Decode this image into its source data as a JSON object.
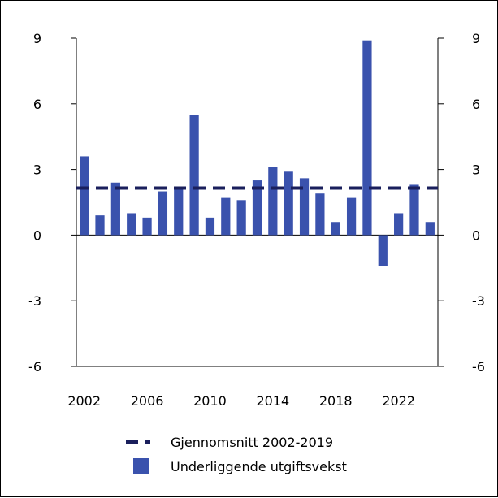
{
  "chart_data": {
    "type": "bar",
    "title": "",
    "xlabel": "",
    "ylabel": "",
    "x": [
      2002,
      2003,
      2004,
      2005,
      2006,
      2007,
      2008,
      2009,
      2010,
      2011,
      2012,
      2013,
      2014,
      2015,
      2016,
      2017,
      2018,
      2019,
      2020,
      2021,
      2022,
      2023,
      2024
    ],
    "series": [
      {
        "name": "Underliggende utgiftsvekst",
        "kind": "bar",
        "color": "#3a52ad",
        "values": [
          3.6,
          0.9,
          2.4,
          1.0,
          0.8,
          2.0,
          2.2,
          5.5,
          0.8,
          1.7,
          1.6,
          2.5,
          3.1,
          2.9,
          2.6,
          1.9,
          0.6,
          1.7,
          8.9,
          -1.4,
          1.0,
          2.3,
          0.6
        ]
      },
      {
        "name": "Gjennomsnitt 2002-2019",
        "kind": "line",
        "style": "dashed",
        "color": "#1a1f5c",
        "value": 2.15
      }
    ],
    "ylim": [
      -6,
      9
    ],
    "yticks": [
      "-6",
      "-3",
      "0",
      "3",
      "6",
      "9"
    ],
    "xticks": [
      "2002",
      "2006",
      "2010",
      "2014",
      "2018",
      "2022"
    ],
    "grid": false,
    "legend_position": "bottom",
    "legend": [
      {
        "label": "Gjennomsnitt 2002-2019",
        "kind": "line"
      },
      {
        "label": "Underliggende utgiftsvekst",
        "kind": "bar"
      }
    ]
  }
}
